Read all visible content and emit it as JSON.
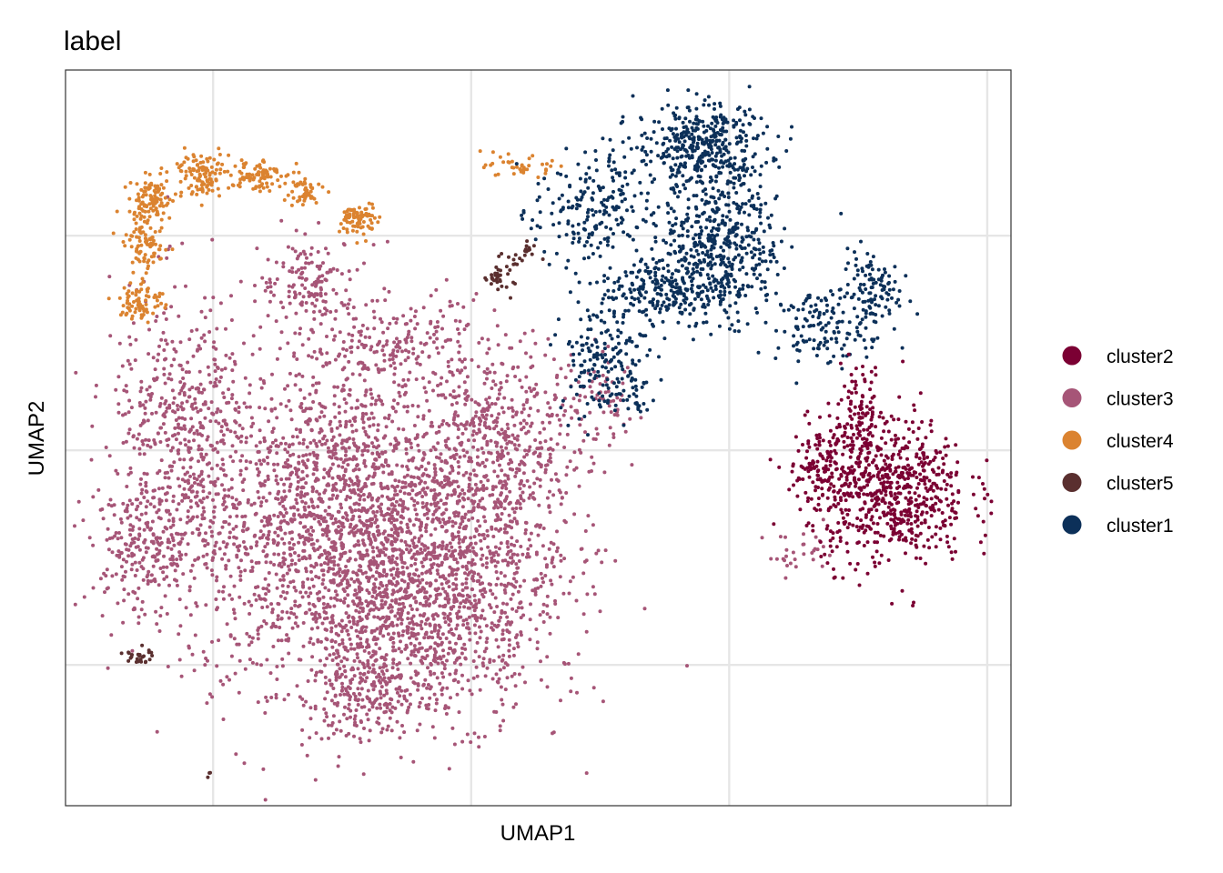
{
  "chart_data": {
    "type": "scatter",
    "title": "label",
    "xlabel": "UMAP1",
    "ylabel": "UMAP2",
    "xlim": [
      -7.86,
      10.46
    ],
    "ylim": [
      -8.28,
      8.86
    ],
    "x_gridlines": [
      -5,
      0,
      5,
      10
    ],
    "y_gridlines": [
      -5,
      0,
      5
    ],
    "grid": true,
    "tick_labels_shown": false,
    "legend_position": "right",
    "legend": [
      {
        "name": "cluster2",
        "color": "#7b0033"
      },
      {
        "name": "cluster3",
        "color": "#a65577"
      },
      {
        "name": "cluster4",
        "color": "#db8330"
      },
      {
        "name": "cluster5",
        "color": "#5a2f2f"
      },
      {
        "name": "cluster1",
        "color": "#0c3059"
      }
    ],
    "series_note_format": "blobs: [center_x, center_y, sd_x, sd_y, count] in UMAP units",
    "series": [
      {
        "name": "cluster3",
        "color": "#a65577",
        "blobs": [
          [
            -2.24,
            -1.82,
            2.12,
            2.33,
            2500
          ],
          [
            -5.59,
            0.3,
            0.88,
            2.12,
            500
          ],
          [
            -6.3,
            -2.25,
            0.71,
            0.85,
            200
          ],
          [
            -0.65,
            -3.94,
            1.41,
            1.48,
            700
          ],
          [
            0.58,
            -0.13,
            1.06,
            1.69,
            500
          ],
          [
            -3.12,
            3.9,
            0.62,
            0.64,
            150
          ],
          [
            -1.53,
            2.42,
            1.06,
            0.64,
            200
          ],
          [
            2.52,
            1.14,
            0.53,
            0.64,
            60
          ],
          [
            6.4,
            -2.46,
            0.44,
            0.32,
            30
          ],
          [
            -2.06,
            -5.64,
            0.71,
            0.64,
            200
          ]
        ]
      },
      {
        "name": "cluster4",
        "color": "#db8330",
        "blobs": [
          [
            -6.38,
            3.47,
            0.26,
            0.32,
            80
          ],
          [
            -6.3,
            4.75,
            0.26,
            0.32,
            80
          ],
          [
            -6.21,
            5.81,
            0.26,
            0.32,
            100
          ],
          [
            -5.24,
            6.44,
            0.35,
            0.32,
            120
          ],
          [
            -4.18,
            6.44,
            0.3,
            0.25,
            80
          ],
          [
            -3.3,
            6.02,
            0.26,
            0.25,
            50
          ],
          [
            -2.15,
            5.38,
            0.22,
            0.25,
            80
          ],
          [
            0.93,
            6.59,
            0.4,
            0.15,
            40
          ]
        ]
      },
      {
        "name": "cluster5",
        "color": "#5a2f2f",
        "blobs": [
          [
            0.55,
            4.11,
            0.18,
            0.25,
            40
          ],
          [
            1.11,
            4.64,
            0.18,
            0.13,
            15
          ],
          [
            -6.44,
            -4.79,
            0.18,
            0.13,
            25
          ],
          [
            -5.08,
            -7.54,
            0.04,
            0.04,
            3
          ]
        ]
      },
      {
        "name": "cluster1",
        "color": "#0c3059",
        "blobs": [
          [
            4.46,
            7.08,
            0.79,
            0.64,
            400
          ],
          [
            4.81,
            4.75,
            0.71,
            1.06,
            500
          ],
          [
            2.35,
            5.59,
            0.71,
            0.85,
            200
          ],
          [
            3.58,
            3.69,
            0.71,
            0.53,
            200
          ],
          [
            2.52,
            2.2,
            0.53,
            0.85,
            150
          ],
          [
            6.75,
            2.84,
            0.53,
            0.53,
            120
          ],
          [
            7.72,
            3.69,
            0.35,
            0.64,
            120
          ],
          [
            3.05,
            1.36,
            0.35,
            0.42,
            40
          ]
        ]
      },
      {
        "name": "cluster2",
        "color": "#7b0033",
        "blobs": [
          [
            8.08,
            -0.97,
            0.97,
            1.06,
            700
          ],
          [
            7.46,
            0.93,
            0.35,
            0.64,
            100
          ],
          [
            6.75,
            -0.34,
            0.35,
            0.42,
            80
          ]
        ]
      }
    ]
  }
}
